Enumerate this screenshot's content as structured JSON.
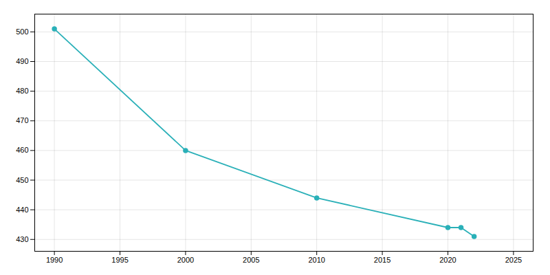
{
  "chart_data": {
    "type": "line",
    "x": [
      1990,
      2000,
      2010,
      2020,
      2021,
      2022
    ],
    "values": [
      501,
      460,
      444,
      434,
      434,
      431
    ],
    "color": "#2ab0b8",
    "marker": "circle",
    "line_style": "solid",
    "xlim": [
      1988.5,
      2026.5
    ],
    "ylim": [
      426,
      506
    ],
    "xticks": [
      1990,
      1995,
      2000,
      2005,
      2010,
      2015,
      2020,
      2025
    ],
    "yticks": [
      430,
      440,
      450,
      460,
      470,
      480,
      490,
      500
    ],
    "grid": true
  }
}
